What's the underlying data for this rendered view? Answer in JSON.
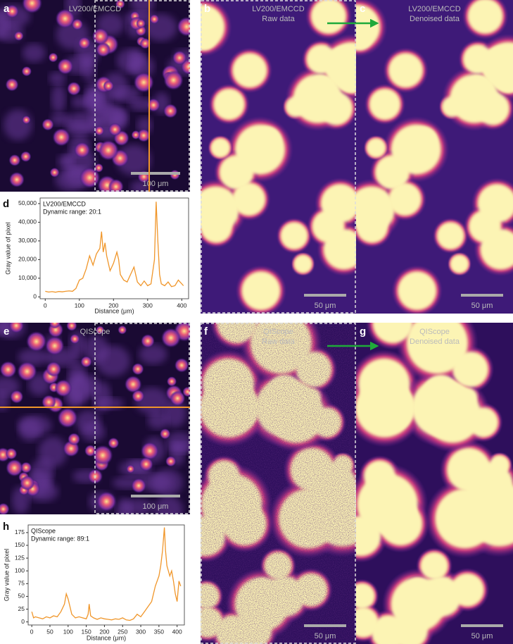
{
  "panels": [
    {
      "letter": "a",
      "title": "LV200/EMCCD",
      "scale_bar": "100 μm"
    },
    {
      "letter": "b",
      "title": "LV200/EMCCD",
      "subtitle": "Raw data",
      "scale_bar": "50 μm"
    },
    {
      "letter": "c",
      "title": "LV200/EMCCD",
      "subtitle": "Denoised data",
      "scale_bar": "50 μm"
    },
    {
      "letter": "e",
      "title": "QIScope",
      "scale_bar": "100 μm"
    },
    {
      "letter": "f",
      "title": "QIScope",
      "subtitle": "Raw data",
      "scale_bar": "50 μm"
    },
    {
      "letter": "g",
      "title": "QIScope",
      "subtitle": "Denoised data",
      "scale_bar": "50 μm"
    }
  ],
  "chart_data": [
    {
      "type": "line",
      "panel": "d",
      "annotations": [
        "LV200/EMCCD",
        "Dynamic range: 20:1"
      ],
      "xlabel": "Distance (μm)",
      "ylabel": "Gray value of pixel",
      "x": [
        0,
        10,
        20,
        30,
        40,
        50,
        60,
        70,
        80,
        90,
        100,
        110,
        120,
        130,
        140,
        150,
        160,
        165,
        170,
        175,
        180,
        190,
        200,
        210,
        215,
        220,
        230,
        240,
        250,
        260,
        270,
        280,
        290,
        300,
        310,
        320,
        325,
        330,
        335,
        340,
        350,
        360,
        370,
        380,
        390,
        400,
        405
      ],
      "series": [
        {
          "name": "LV200/EMCCD",
          "color": "#f0962a",
          "values": [
            3000,
            2600,
            2800,
            2500,
            2900,
            2700,
            3000,
            3200,
            3000,
            4500,
            9000,
            10000,
            15000,
            22000,
            17000,
            23000,
            26000,
            35000,
            24000,
            29000,
            22000,
            14000,
            18000,
            24000,
            20000,
            12000,
            9000,
            8000,
            12000,
            16000,
            8000,
            6000,
            8500,
            6000,
            7000,
            20000,
            51000,
            30000,
            12000,
            7000,
            6000,
            8000,
            5500,
            6000,
            9000,
            7000,
            6000
          ]
        }
      ],
      "xlim": [
        -15,
        420
      ],
      "xticks": [
        0,
        100,
        200,
        300,
        400
      ],
      "ylim": [
        -1000,
        53000
      ],
      "yticks": [
        0,
        {
          "value": 10000,
          "label": "10,000"
        },
        {
          "value": 20000,
          "label": "20,000"
        },
        {
          "value": 30000,
          "label": "30,000"
        },
        {
          "value": 40000,
          "label": "40,000"
        },
        {
          "value": 50000,
          "label": "50,000"
        }
      ]
    },
    {
      "type": "line",
      "panel": "h",
      "annotations": [
        "QIScope",
        "Dynamic range: 89:1"
      ],
      "xlabel": "Distance (μm)",
      "ylabel": "Gray value of pixel",
      "x": [
        0,
        5,
        10,
        20,
        30,
        40,
        50,
        60,
        70,
        80,
        90,
        95,
        100,
        105,
        110,
        120,
        130,
        140,
        150,
        155,
        158,
        162,
        170,
        180,
        190,
        200,
        210,
        220,
        230,
        240,
        250,
        260,
        270,
        280,
        290,
        300,
        310,
        320,
        330,
        340,
        350,
        355,
        360,
        365,
        368,
        372,
        380,
        385,
        390,
        395,
        400,
        405,
        410
      ],
      "series": [
        {
          "name": "QIScope",
          "color": "#f0962a",
          "values": [
            20,
            8,
            10,
            8,
            6,
            10,
            8,
            12,
            10,
            20,
            35,
            55,
            45,
            30,
            15,
            8,
            10,
            8,
            6,
            15,
            35,
            12,
            8,
            5,
            8,
            6,
            5,
            4,
            6,
            5,
            8,
            4,
            3,
            6,
            15,
            10,
            20,
            30,
            40,
            70,
            90,
            110,
            140,
            185,
            140,
            110,
            90,
            100,
            80,
            55,
            40,
            80,
            70
          ]
        }
      ],
      "xlim": [
        -10,
        420
      ],
      "xticks": [
        0,
        50,
        100,
        150,
        200,
        250,
        300,
        350,
        400
      ],
      "ylim": [
        -6,
        190
      ],
      "yticks": [
        0,
        25,
        50,
        75,
        100,
        125,
        150,
        175
      ]
    }
  ]
}
